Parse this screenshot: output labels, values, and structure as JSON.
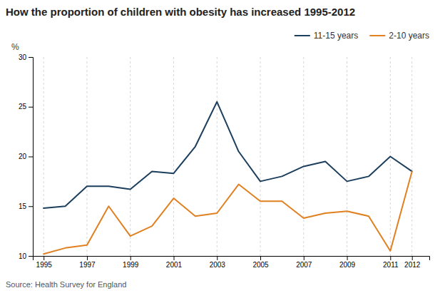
{
  "chart_data": {
    "type": "line",
    "title": "How the proportion of children with obesity has increased 1995-2012",
    "y_label": "%",
    "annotations": [
      "Source: Health Survey for England"
    ],
    "x": [
      1995,
      1996,
      1997,
      1998,
      1999,
      2000,
      2001,
      2002,
      2003,
      2004,
      2005,
      2006,
      2007,
      2008,
      2009,
      2010,
      2011,
      2012
    ],
    "series": [
      {
        "name": "11-15 years",
        "color": "#1c3f5e",
        "values": [
          14.8,
          15.0,
          17.0,
          17.0,
          16.7,
          18.5,
          18.3,
          21.0,
          25.5,
          20.5,
          17.5,
          18.0,
          19.0,
          19.5,
          17.5,
          18.0,
          20.0,
          18.5
        ]
      },
      {
        "name": "2-10 years",
        "color": "#e08020",
        "values": [
          10.2,
          10.8,
          11.1,
          15.0,
          12.0,
          13.0,
          15.8,
          14.0,
          14.3,
          17.2,
          15.5,
          15.5,
          13.8,
          14.3,
          14.5,
          14.0,
          10.5,
          18.5
        ]
      }
    ],
    "xlim": [
      1994.5,
      2012.8
    ],
    "xticks": [
      1995,
      1997,
      1999,
      2001,
      2003,
      2005,
      2007,
      2009,
      2011,
      2012
    ],
    "ylim": [
      10,
      30
    ],
    "yticks": [
      10,
      15,
      20,
      25,
      30
    ],
    "grid": "x",
    "legend": "top-right"
  }
}
